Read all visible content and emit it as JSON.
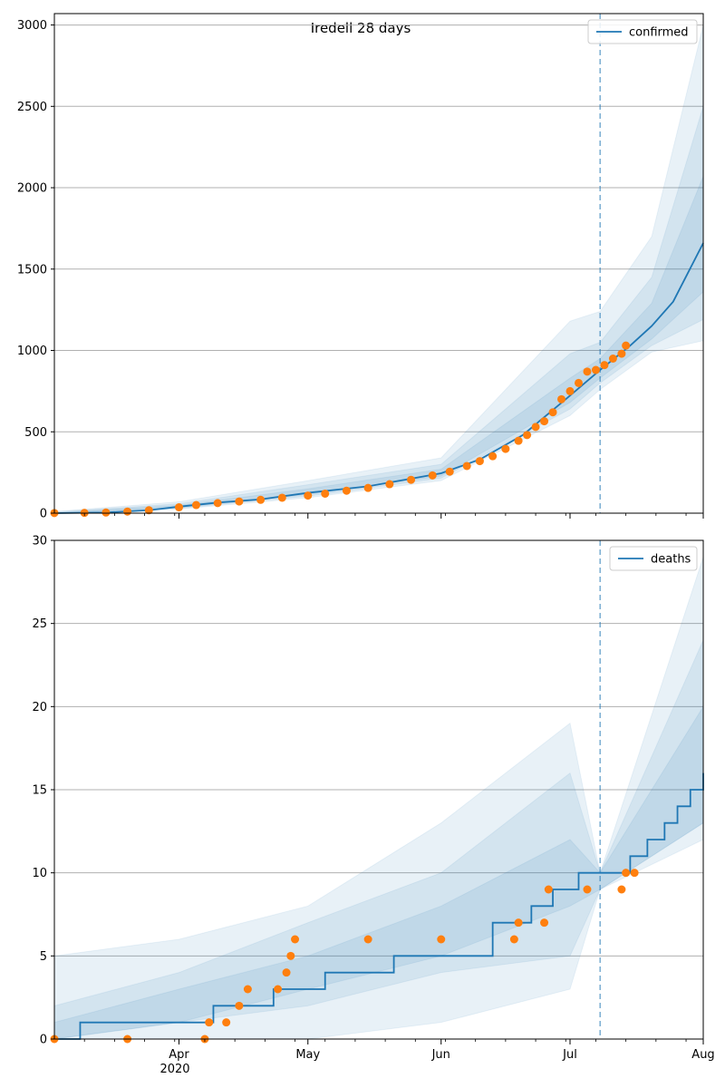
{
  "figure": {
    "suptitle": "Iredell 28 days",
    "x_tick_labels": [
      "Apr",
      "May",
      "Jun",
      "Jul",
      "Aug"
    ],
    "x_year_label": "2020"
  },
  "colors": {
    "model": "#1f77b4",
    "observed": "#ff7f0e",
    "band": "#1f77b4",
    "grid": "#b0b0b0",
    "vline": "#1f77b4"
  },
  "chart_data": [
    {
      "type": "line",
      "title": "Iredell 28 days",
      "xlabel": "",
      "ylabel": "",
      "x_range": [
        "2020-03-03",
        "2020-08-01"
      ],
      "ylim": [
        0,
        3070
      ],
      "yticks": [
        0,
        500,
        1000,
        1500,
        2000,
        2500,
        3000
      ],
      "grid": "y",
      "legend_position": "top-right",
      "forecast_start": "2020-07-08",
      "series": [
        {
          "name": "confirmed",
          "kind": "model line",
          "points": [
            [
              "2020-03-03",
              0
            ],
            [
              "2020-03-15",
              4
            ],
            [
              "2020-03-25",
              18
            ],
            [
              "2020-04-01",
              40
            ],
            [
              "2020-04-10",
              65
            ],
            [
              "2020-04-20",
              85
            ],
            [
              "2020-05-01",
              125
            ],
            [
              "2020-05-15",
              165
            ],
            [
              "2020-06-01",
              245
            ],
            [
              "2020-06-10",
              330
            ],
            [
              "2020-06-20",
              480
            ],
            [
              "2020-06-30",
              700
            ],
            [
              "2020-07-08",
              880
            ],
            [
              "2020-07-15",
              1030
            ],
            [
              "2020-07-20",
              1150
            ],
            [
              "2020-07-25",
              1300
            ],
            [
              "2020-08-01",
              1660
            ]
          ]
        },
        {
          "name": "",
          "kind": "observed",
          "points": [
            [
              "2020-03-03",
              1
            ],
            [
              "2020-03-10",
              2
            ],
            [
              "2020-03-15",
              4
            ],
            [
              "2020-03-20",
              10
            ],
            [
              "2020-03-25",
              18
            ],
            [
              "2020-04-01",
              36
            ],
            [
              "2020-04-05",
              50
            ],
            [
              "2020-04-10",
              62
            ],
            [
              "2020-04-15",
              72
            ],
            [
              "2020-04-20",
              82
            ],
            [
              "2020-04-25",
              95
            ],
            [
              "2020-05-01",
              108
            ],
            [
              "2020-05-05",
              120
            ],
            [
              "2020-05-10",
              138
            ],
            [
              "2020-05-15",
              155
            ],
            [
              "2020-05-20",
              178
            ],
            [
              "2020-05-25",
              205
            ],
            [
              "2020-05-30",
              232
            ],
            [
              "2020-06-03",
              255
            ],
            [
              "2020-06-07",
              290
            ],
            [
              "2020-06-10",
              320
            ],
            [
              "2020-06-13",
              350
            ],
            [
              "2020-06-16",
              395
            ],
            [
              "2020-06-19",
              445
            ],
            [
              "2020-06-21",
              480
            ],
            [
              "2020-06-23",
              530
            ],
            [
              "2020-06-25",
              565
            ],
            [
              "2020-06-27",
              620
            ],
            [
              "2020-06-29",
              700
            ],
            [
              "2020-07-01",
              750
            ],
            [
              "2020-07-03",
              800
            ],
            [
              "2020-07-05",
              870
            ],
            [
              "2020-07-07",
              880
            ],
            [
              "2020-07-09",
              910
            ],
            [
              "2020-07-11",
              950
            ],
            [
              "2020-07-13",
              980
            ],
            [
              "2020-07-14",
              1030
            ]
          ]
        }
      ],
      "bands": [
        {
          "points": [
            [
              "2020-03-03",
              0,
              10
            ],
            [
              "2020-04-01",
              25,
              70
            ],
            [
              "2020-05-01",
              95,
              200
            ],
            [
              "2020-06-01",
              200,
              340
            ],
            [
              "2020-07-01",
              600,
              1180
            ],
            [
              "2020-07-08",
              760,
              1240
            ],
            [
              "2020-07-20",
              990,
              1700
            ],
            [
              "2020-08-01",
              1060,
              3000
            ]
          ]
        },
        {
          "points": [
            [
              "2020-03-03",
              0,
              6
            ],
            [
              "2020-04-01",
              30,
              58
            ],
            [
              "2020-05-01",
              105,
              175
            ],
            [
              "2020-06-01",
              215,
              300
            ],
            [
              "2020-07-01",
              640,
              980
            ],
            [
              "2020-07-08",
              800,
              1050
            ],
            [
              "2020-07-20",
              1030,
              1450
            ],
            [
              "2020-08-01",
              1190,
              2500
            ]
          ]
        },
        {
          "points": [
            [
              "2020-03-03",
              0,
              3
            ],
            [
              "2020-04-01",
              34,
              48
            ],
            [
              "2020-05-01",
              115,
              150
            ],
            [
              "2020-06-01",
              228,
              270
            ],
            [
              "2020-07-01",
              680,
              830
            ],
            [
              "2020-07-08",
              830,
              950
            ],
            [
              "2020-07-20",
              1070,
              1290
            ],
            [
              "2020-08-01",
              1360,
              2070
            ]
          ]
        }
      ]
    },
    {
      "type": "line",
      "title": "",
      "xlabel": "",
      "ylabel": "",
      "x_range": [
        "2020-03-03",
        "2020-08-01"
      ],
      "ylim": [
        0,
        30
      ],
      "yticks": [
        0,
        5,
        10,
        15,
        20,
        25,
        30
      ],
      "grid": "y",
      "legend_position": "top-right",
      "forecast_start": "2020-07-08",
      "series": [
        {
          "name": "deaths",
          "kind": "model step",
          "points": [
            [
              "2020-03-03",
              0
            ],
            [
              "2020-03-09",
              1
            ],
            [
              "2020-04-09",
              2
            ],
            [
              "2020-04-23",
              3
            ],
            [
              "2020-05-05",
              4
            ],
            [
              "2020-05-21",
              5
            ],
            [
              "2020-06-13",
              7
            ],
            [
              "2020-06-22",
              8
            ],
            [
              "2020-06-27",
              9
            ],
            [
              "2020-07-03",
              10
            ],
            [
              "2020-07-10",
              10
            ],
            [
              "2020-07-15",
              11
            ],
            [
              "2020-07-19",
              12
            ],
            [
              "2020-07-23",
              13
            ],
            [
              "2020-07-26",
              14
            ],
            [
              "2020-07-29",
              15
            ],
            [
              "2020-08-01",
              16
            ]
          ]
        },
        {
          "name": "",
          "kind": "observed",
          "points": [
            [
              "2020-03-03",
              0
            ],
            [
              "2020-03-20",
              0
            ],
            [
              "2020-04-07",
              0
            ],
            [
              "2020-04-08",
              1
            ],
            [
              "2020-04-12",
              1
            ],
            [
              "2020-04-15",
              2
            ],
            [
              "2020-04-17",
              3
            ],
            [
              "2020-04-24",
              3
            ],
            [
              "2020-04-26",
              4
            ],
            [
              "2020-04-27",
              5
            ],
            [
              "2020-04-28",
              6
            ],
            [
              "2020-05-15",
              6
            ],
            [
              "2020-06-01",
              6
            ],
            [
              "2020-06-18",
              6
            ],
            [
              "2020-06-19",
              7
            ],
            [
              "2020-06-25",
              7
            ],
            [
              "2020-06-26",
              9
            ],
            [
              "2020-07-05",
              9
            ],
            [
              "2020-07-13",
              9
            ],
            [
              "2020-07-14",
              10
            ],
            [
              "2020-07-16",
              10
            ]
          ]
        }
      ],
      "bands": [
        {
          "points": [
            [
              "2020-03-03",
              0,
              5
            ],
            [
              "2020-04-01",
              0,
              6
            ],
            [
              "2020-05-01",
              0,
              8
            ],
            [
              "2020-06-01",
              1,
              13
            ],
            [
              "2020-07-01",
              3,
              19
            ],
            [
              "2020-07-08",
              9,
              10
            ],
            [
              "2020-08-01",
              12,
              29
            ]
          ]
        },
        {
          "points": [
            [
              "2020-03-03",
              0,
              2
            ],
            [
              "2020-04-01",
              1,
              4
            ],
            [
              "2020-05-01",
              2,
              7
            ],
            [
              "2020-06-01",
              4,
              10
            ],
            [
              "2020-07-01",
              5,
              16
            ],
            [
              "2020-07-08",
              9,
              10
            ],
            [
              "2020-08-01",
              13,
              24
            ]
          ]
        },
        {
          "points": [
            [
              "2020-03-03",
              0,
              1
            ],
            [
              "2020-04-01",
              1,
              3
            ],
            [
              "2020-05-01",
              3,
              5
            ],
            [
              "2020-06-01",
              5,
              8
            ],
            [
              "2020-07-01",
              8,
              12
            ],
            [
              "2020-07-08",
              9,
              10
            ],
            [
              "2020-08-01",
              13,
              20
            ]
          ]
        }
      ]
    }
  ]
}
